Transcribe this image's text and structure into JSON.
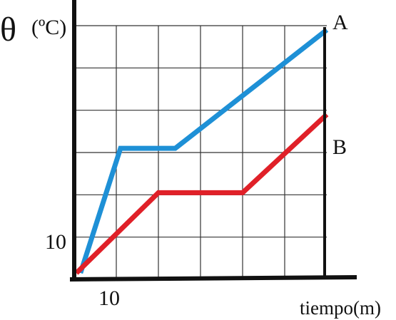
{
  "chart_data": {
    "type": "line",
    "ylabel_symbol": "θ",
    "ylabel_unit": "(ºC)",
    "xlabel": "tiempo(m)",
    "x_tick_label": "10",
    "y_tick_label": "10",
    "xlim": [
      0,
      60
    ],
    "ylim": [
      0,
      60
    ],
    "x_gridlines": [
      10,
      20,
      30,
      40,
      50
    ],
    "y_gridlines": [
      10,
      20,
      30,
      40,
      50
    ],
    "grid": true,
    "series": [
      {
        "name": "A",
        "color": "#1e90d6",
        "x": [
          1.5,
          11,
          24,
          60
        ],
        "y": [
          1.5,
          31,
          31,
          59
        ]
      },
      {
        "name": "B",
        "color": "#e02028",
        "x": [
          0.5,
          20,
          40,
          60
        ],
        "y": [
          1.5,
          20.5,
          20.5,
          39
        ]
      }
    ]
  },
  "colors": {
    "axis": "#111111",
    "grid": "#333333"
  }
}
